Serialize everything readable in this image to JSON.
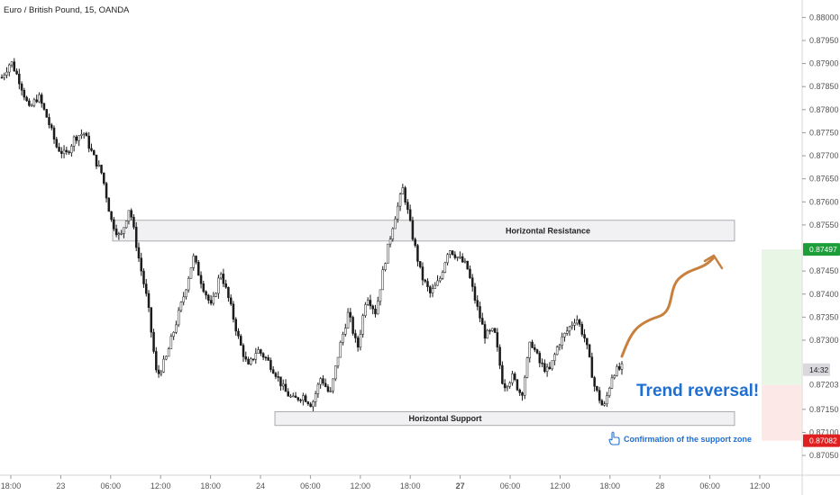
{
  "header": {
    "symbol_title": "Euro / British Pound, 15, OANDA"
  },
  "chart_data": {
    "type": "candlestick",
    "title": "Euro / British Pound, 15, OANDA",
    "price_ticks": [
      0.88,
      0.8795,
      0.879,
      0.8785,
      0.878,
      0.8775,
      0.877,
      0.8765,
      0.876,
      0.8755,
      0.8745,
      0.874,
      0.8735,
      0.873,
      0.8715,
      0.871,
      0.8705
    ],
    "price_tick_labels": [
      "0.88000",
      "0.87950",
      "0.87900",
      "0.87850",
      "0.87800",
      "0.87750",
      "0.87700",
      "0.87650",
      "0.87600",
      "0.87550",
      "0.87450",
      "0.87400",
      "0.87350",
      "0.87300",
      "0.87150",
      "0.87100",
      "0.87050"
    ],
    "ylim": [
      0.87015,
      0.8803
    ],
    "time_labels": [
      "18:00",
      "23",
      "06:00",
      "12:00",
      "18:00",
      "24",
      "06:00",
      "12:00",
      "18:00",
      "27",
      "06:00",
      "12:00",
      "18:00",
      "28",
      "06:00",
      "12:00"
    ],
    "time_label_bold": [
      false,
      false,
      false,
      false,
      false,
      false,
      false,
      false,
      false,
      true,
      false,
      false,
      false,
      false,
      false,
      false
    ],
    "close_path": [
      [
        0,
        0.8787
      ],
      [
        1,
        0.87905
      ],
      [
        2,
        0.8786
      ],
      [
        3,
        0.878
      ],
      [
        4,
        0.8783
      ],
      [
        5,
        0.8778
      ],
      [
        6,
        0.8772
      ],
      [
        7,
        0.877
      ],
      [
        8,
        0.8774
      ],
      [
        9,
        0.8775
      ],
      [
        10,
        0.877
      ],
      [
        11,
        0.8766
      ],
      [
        12,
        0.8756
      ],
      [
        13,
        0.8752
      ],
      [
        14,
        0.8759
      ],
      [
        15,
        0.8748
      ],
      [
        16,
        0.8738
      ],
      [
        17,
        0.8722
      ],
      [
        18,
        0.8726
      ],
      [
        19,
        0.8733
      ],
      [
        20,
        0.874
      ],
      [
        21,
        0.8748
      ],
      [
        22,
        0.8742
      ],
      [
        23,
        0.8737
      ],
      [
        24,
        0.8745
      ],
      [
        25,
        0.8738
      ],
      [
        26,
        0.873
      ],
      [
        27,
        0.8724
      ],
      [
        28,
        0.8728
      ],
      [
        29,
        0.8726
      ],
      [
        30,
        0.8723
      ],
      [
        31,
        0.8719
      ],
      [
        32,
        0.8717
      ],
      [
        33,
        0.8718
      ],
      [
        34,
        0.8716
      ],
      [
        35,
        0.8722
      ],
      [
        36,
        0.8718
      ],
      [
        37,
        0.8728
      ],
      [
        38,
        0.8736
      ],
      [
        39,
        0.8728
      ],
      [
        40,
        0.874
      ],
      [
        41,
        0.8736
      ],
      [
        42,
        0.8747
      ],
      [
        43,
        0.8756
      ],
      [
        44,
        0.8763
      ],
      [
        45,
        0.8753
      ],
      [
        46,
        0.8744
      ],
      [
        47,
        0.874
      ],
      [
        48,
        0.8743
      ],
      [
        49,
        0.875
      ],
      [
        50,
        0.8748
      ],
      [
        51,
        0.8746
      ],
      [
        52,
        0.8738
      ],
      [
        53,
        0.8731
      ],
      [
        54,
        0.8732
      ],
      [
        55,
        0.872
      ],
      [
        56,
        0.8722
      ],
      [
        57,
        0.8718
      ],
      [
        58,
        0.873
      ],
      [
        59,
        0.8725
      ],
      [
        60,
        0.8723
      ],
      [
        61,
        0.8729
      ],
      [
        62,
        0.8732
      ],
      [
        63,
        0.8735
      ],
      [
        64,
        0.873
      ],
      [
        65,
        0.872
      ],
      [
        66,
        0.8715
      ],
      [
        67,
        0.8723
      ],
      [
        68,
        0.8724
      ]
    ],
    "annotations": {
      "resistance_label": "Horizontal Resistance",
      "resistance_range": [
        0.87515,
        0.8756
      ],
      "support_label": "Horizontal Support",
      "support_range": [
        0.87115,
        0.87145
      ],
      "reversal_text": "Trend reversal!",
      "confirmation_text": "Confirmation of the support zone"
    },
    "price_badges": {
      "target": "0.87497",
      "countdown": "14:32",
      "entry": "0.87203",
      "stop": "0.87082"
    },
    "zones": {
      "profit_range": [
        0.87203,
        0.87497
      ],
      "loss_range": [
        0.87082,
        0.87203
      ]
    },
    "colors": {
      "candle": "#1a1a1a",
      "zone_fill": "#f1f1f3",
      "zone_stroke": "#9a9aa0",
      "arrow": "#c8803e",
      "profit_fill": "#e8f6e6",
      "loss_fill": "#fde8e8",
      "target_badge": "#1e9e3a",
      "stop_badge": "#e02020",
      "countdown_badge": "#d9d9dd",
      "text_blue": "#1e6fd0"
    },
    "grid": false,
    "legend": "none"
  }
}
